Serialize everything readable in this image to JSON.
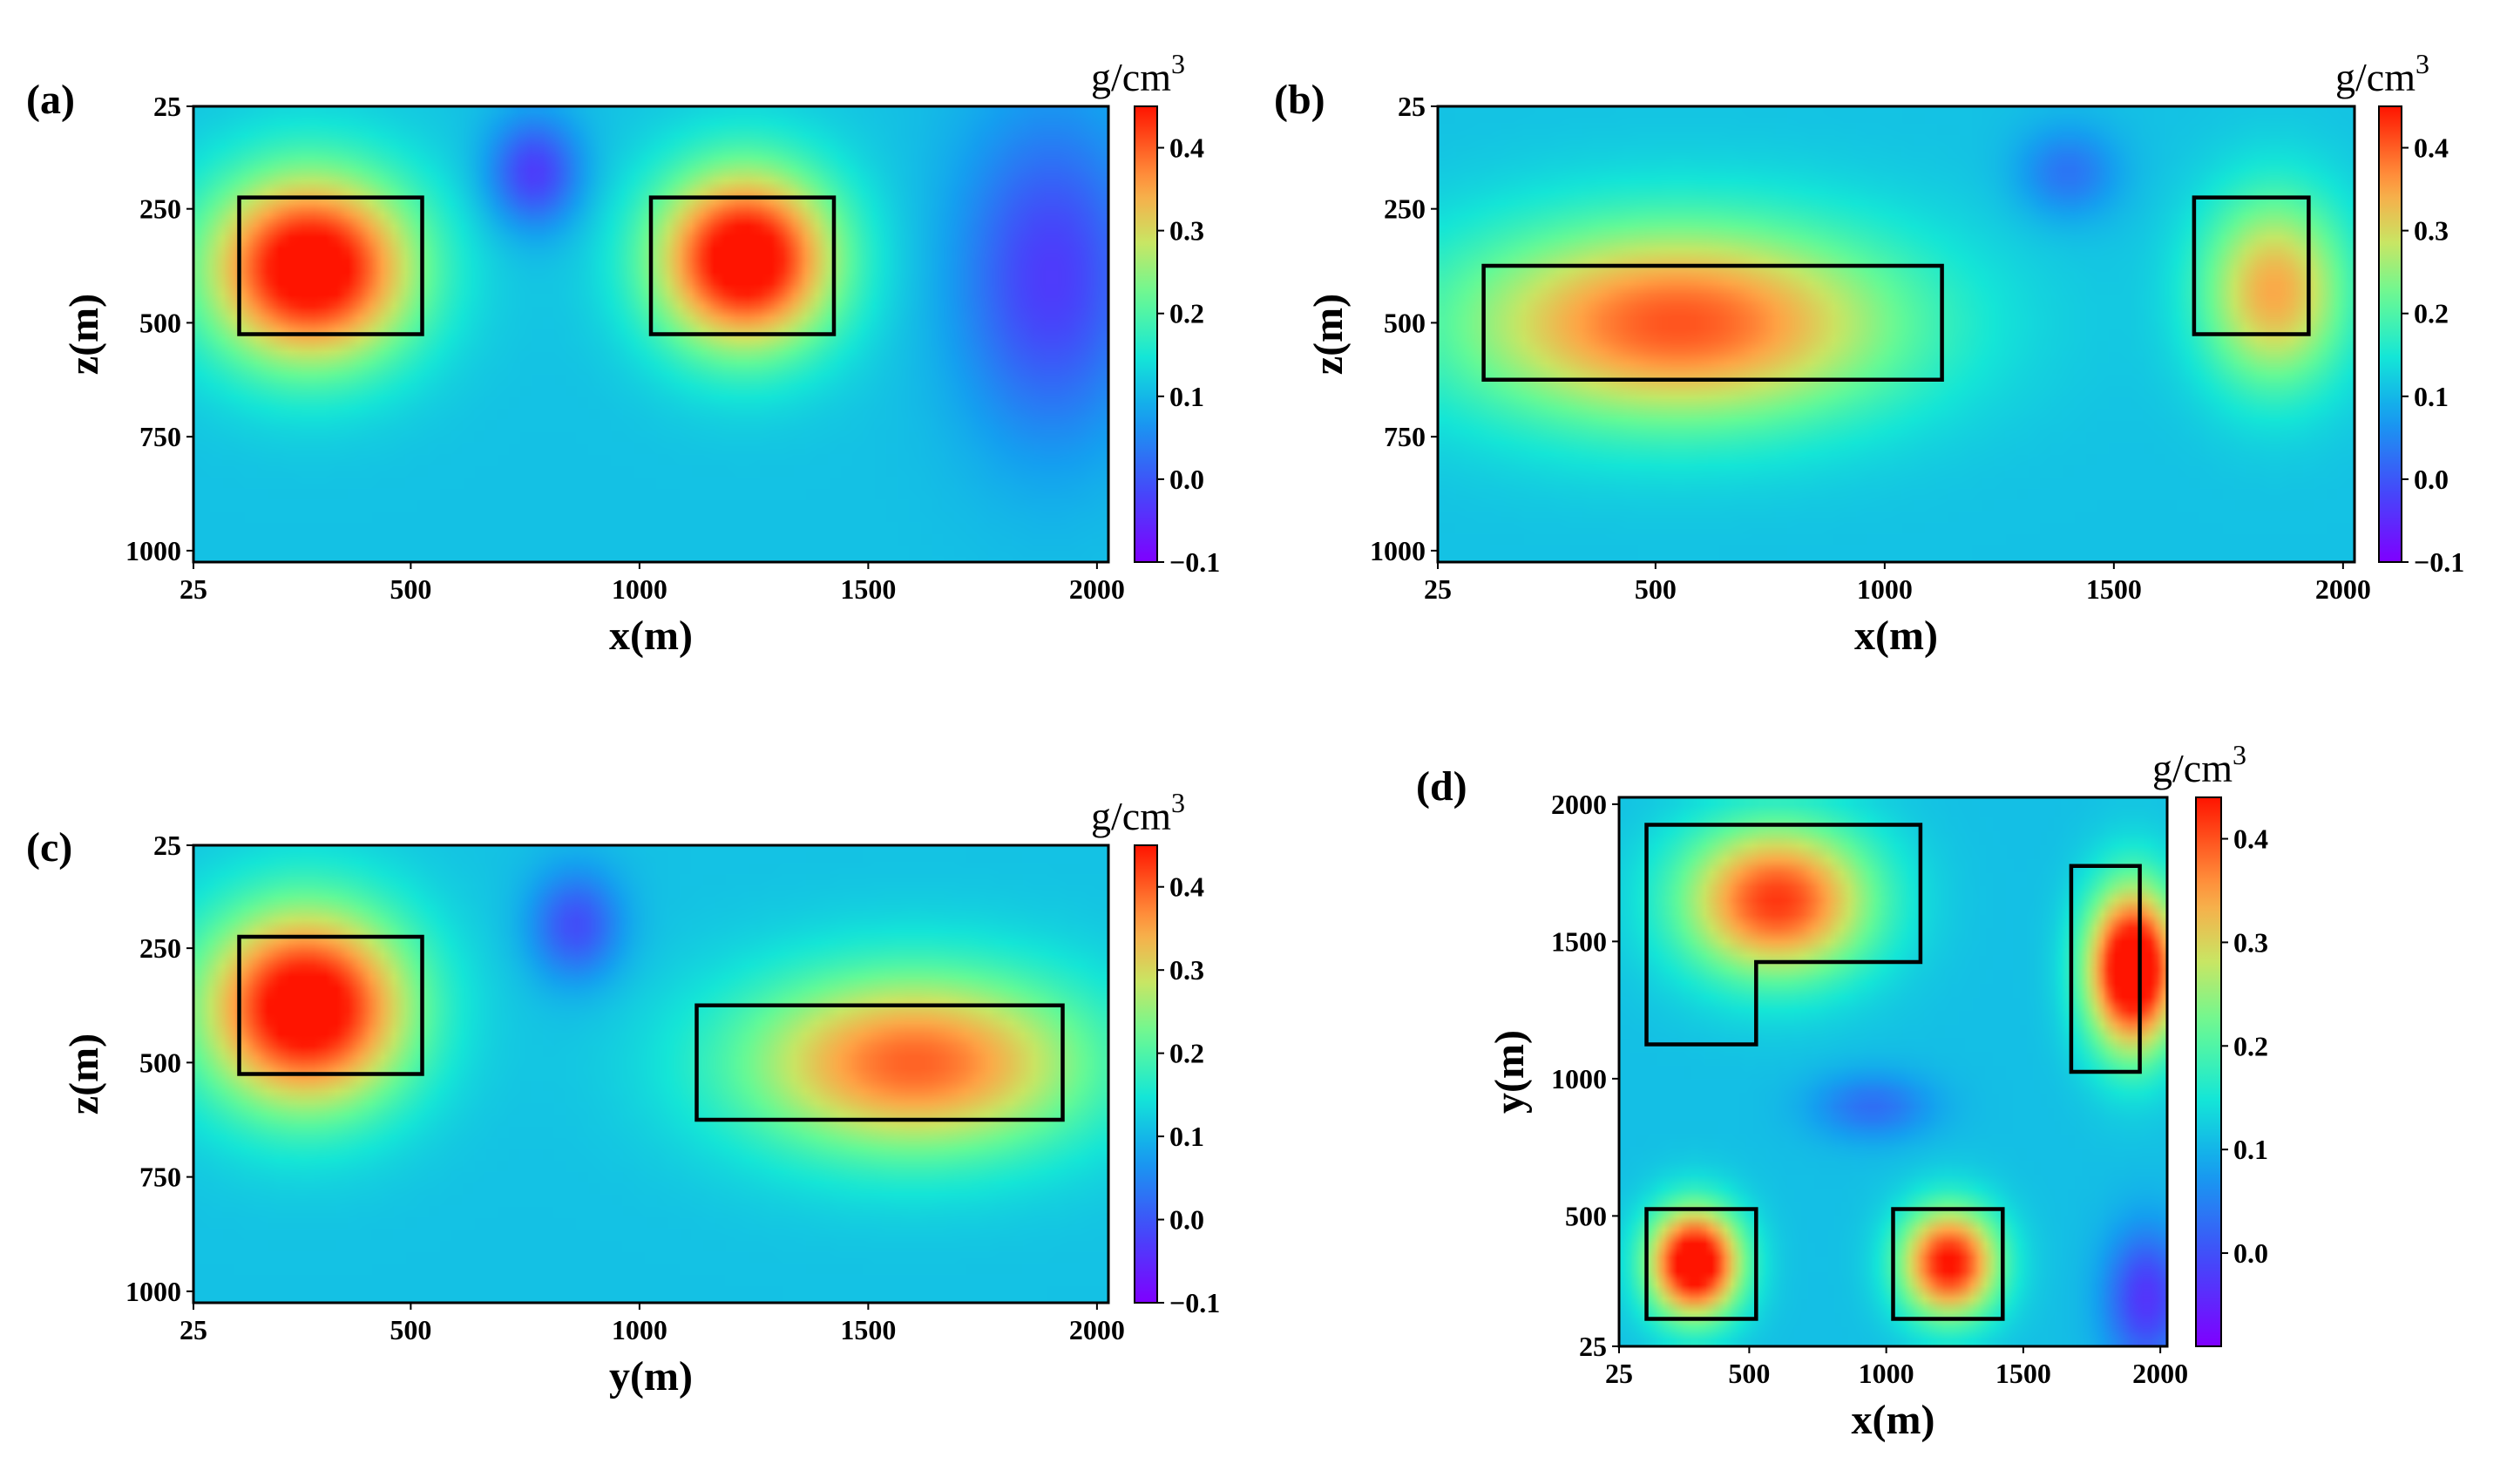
{
  "chart_data": [
    {
      "type": "heatmap",
      "panel_label": "(a)",
      "xlabel": "x(m)",
      "ylabel": "z(m)",
      "xlim": [
        25,
        2025
      ],
      "ylim": [
        1025,
        25
      ],
      "xticks": [
        25,
        500,
        1000,
        1500,
        2000
      ],
      "yticks": [
        25,
        250,
        500,
        750,
        1000
      ],
      "colorbar": {
        "unit_base": "g/cm",
        "unit_exp": "3",
        "range": [
          -0.1,
          0.45
        ],
        "ticks": [
          "0.4",
          "0.3",
          "0.2",
          "0.1",
          "0.0",
          "−0.1"
        ],
        "tick_values": [
          0.4,
          0.3,
          0.2,
          0.1,
          0.0,
          -0.1
        ]
      },
      "anomalies": [
        {
          "cx": 280,
          "cy": 380,
          "sx": 230,
          "sy": 210,
          "amp": 0.42
        },
        {
          "cx": 1230,
          "cy": 360,
          "sx": 200,
          "sy": 200,
          "amp": 0.42
        },
        {
          "cx": 770,
          "cy": 170,
          "sx": 100,
          "sy": 120,
          "amp": -0.16
        },
        {
          "cx": 1900,
          "cy": 400,
          "sx": 200,
          "sy": 350,
          "amp": -0.16
        }
      ],
      "boxes": [
        [
          [
            125,
            225
          ],
          [
            525,
            225
          ],
          [
            525,
            525
          ],
          [
            125,
            525
          ]
        ],
        [
          [
            1025,
            225
          ],
          [
            1425,
            225
          ],
          [
            1425,
            525
          ],
          [
            1025,
            525
          ]
        ]
      ]
    },
    {
      "type": "heatmap",
      "panel_label": "(b)",
      "xlabel": "x(m)",
      "ylabel": "z(m)",
      "xlim": [
        25,
        2025
      ],
      "ylim": [
        1025,
        25
      ],
      "xticks": [
        25,
        500,
        1000,
        1500,
        2000
      ],
      "yticks": [
        25,
        250,
        500,
        750,
        1000
      ],
      "colorbar": {
        "unit_base": "g/cm",
        "unit_exp": "3",
        "range": [
          -0.1,
          0.45
        ],
        "ticks": [
          "0.4",
          "0.3",
          "0.2",
          "0.1",
          "0.0",
          "−0.1"
        ],
        "tick_values": [
          0.4,
          0.3,
          0.2,
          0.1,
          0.0,
          -0.1
        ]
      },
      "anomalies": [
        {
          "cx": 550,
          "cy": 500,
          "sx": 480,
          "sy": 220,
          "amp": 0.33
        },
        {
          "cx": 1850,
          "cy": 430,
          "sx": 160,
          "sy": 210,
          "amp": 0.27
        },
        {
          "cx": 1400,
          "cy": 170,
          "sx": 110,
          "sy": 100,
          "amp": -0.1
        }
      ],
      "boxes": [
        [
          [
            125,
            375
          ],
          [
            1125,
            375
          ],
          [
            1125,
            625
          ],
          [
            125,
            625
          ]
        ],
        [
          [
            1675,
            225
          ],
          [
            1925,
            225
          ],
          [
            1925,
            525
          ],
          [
            1675,
            525
          ]
        ]
      ]
    },
    {
      "type": "heatmap",
      "panel_label": "(c)",
      "xlabel": "y(m)",
      "ylabel": "z(m)",
      "xlim": [
        25,
        2025
      ],
      "ylim": [
        1025,
        25
      ],
      "xticks": [
        25,
        500,
        1000,
        1500,
        2000
      ],
      "yticks": [
        25,
        250,
        500,
        750,
        1000
      ],
      "colorbar": {
        "unit_base": "g/cm",
        "unit_exp": "3",
        "range": [
          -0.1,
          0.45
        ],
        "ticks": [
          "0.4",
          "0.3",
          "0.2",
          "0.1",
          "0.0",
          "−0.1"
        ],
        "tick_values": [
          0.4,
          0.3,
          0.2,
          0.1,
          0.0,
          -0.1
        ]
      },
      "anomalies": [
        {
          "cx": 270,
          "cy": 380,
          "sx": 230,
          "sy": 220,
          "amp": 0.42
        },
        {
          "cx": 1600,
          "cy": 500,
          "sx": 380,
          "sy": 200,
          "amp": 0.32
        },
        {
          "cx": 860,
          "cy": 200,
          "sx": 100,
          "sy": 120,
          "amp": -0.14
        }
      ],
      "boxes": [
        [
          [
            125,
            225
          ],
          [
            525,
            225
          ],
          [
            525,
            525
          ],
          [
            125,
            525
          ]
        ],
        [
          [
            1125,
            375
          ],
          [
            1925,
            375
          ],
          [
            1925,
            625
          ],
          [
            1125,
            625
          ]
        ]
      ]
    },
    {
      "type": "heatmap",
      "panel_label": "(d)",
      "xlabel": "x(m)",
      "ylabel": "y(m)",
      "xlim": [
        25,
        2025
      ],
      "ylim": [
        25,
        2025
      ],
      "xticks": [
        25,
        500,
        1000,
        1500,
        2000
      ],
      "yticks": [
        25,
        500,
        1000,
        1500,
        2000
      ],
      "colorbar": {
        "unit_base": "g/cm",
        "unit_exp": "3",
        "range": [
          -0.09,
          0.44
        ],
        "ticks": [
          "0.4",
          "0.3",
          "0.2",
          "0.1",
          "0.0"
        ],
        "tick_values": [
          0.4,
          0.3,
          0.2,
          0.1,
          0.0
        ]
      },
      "anomalies": [
        {
          "cx": 600,
          "cy": 1650,
          "sx": 350,
          "sy": 280,
          "amp": 0.34
        },
        {
          "cx": 1900,
          "cy": 1400,
          "sx": 170,
          "sy": 300,
          "amp": 0.44
        },
        {
          "cx": 300,
          "cy": 330,
          "sx": 170,
          "sy": 200,
          "amp": 0.42
        },
        {
          "cx": 1230,
          "cy": 330,
          "sx": 180,
          "sy": 200,
          "amp": 0.37
        },
        {
          "cx": 950,
          "cy": 900,
          "sx": 220,
          "sy": 120,
          "amp": -0.1
        },
        {
          "cx": 1950,
          "cy": 200,
          "sx": 150,
          "sy": 250,
          "amp": -0.16
        }
      ],
      "boxes": [
        [
          [
            125,
            1925
          ],
          [
            1125,
            1925
          ],
          [
            1125,
            1425
          ],
          [
            525,
            1425
          ],
          [
            525,
            1125
          ],
          [
            125,
            1125
          ]
        ],
        [
          [
            1675,
            1775
          ],
          [
            1925,
            1775
          ],
          [
            1925,
            1025
          ],
          [
            1675,
            1025
          ]
        ],
        [
          [
            125,
            525
          ],
          [
            525,
            525
          ],
          [
            525,
            125
          ],
          [
            125,
            125
          ]
        ],
        [
          [
            1025,
            525
          ],
          [
            1425,
            525
          ],
          [
            1425,
            125
          ],
          [
            1025,
            125
          ]
        ]
      ]
    }
  ]
}
